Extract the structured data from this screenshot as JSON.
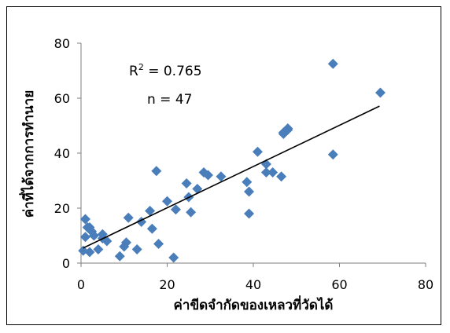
{
  "chart_data": {
    "type": "scatter",
    "xlabel": "ค่าขีดจำกัดของเหลวที่วัดได้",
    "ylabel": "ค่าที่ได้จากการทำนาย",
    "xlim": [
      0,
      80
    ],
    "ylim": [
      0,
      80
    ],
    "x_ticks": [
      "0",
      "20",
      "40",
      "60",
      "80"
    ],
    "y_ticks": [
      "0",
      "20",
      "40",
      "60",
      "80"
    ],
    "grid": false,
    "legend": "none",
    "marker": "diamond",
    "marker_color": "#4a7ebb",
    "trendline_color": "#000000",
    "annotations": {
      "r2_base": "R",
      "r2_sup": "2",
      "r2_value": " = 0.765",
      "n_text": "n = 47"
    },
    "trendline": {
      "x": [
        0.5,
        69.3
      ],
      "y": [
        5.5,
        57.1
      ]
    },
    "points": {
      "x": [
        0.5,
        1,
        1,
        1.5,
        2,
        2,
        2.5,
        3,
        4,
        5,
        5,
        6,
        9,
        10,
        10.5,
        11,
        13,
        14,
        16,
        16.5,
        17.5,
        18,
        20,
        21.5,
        22,
        24.5,
        25,
        25.5,
        27,
        28.5,
        29.5,
        32.5,
        38.5,
        39,
        39,
        41,
        43,
        43,
        44.5,
        46.5,
        47,
        47,
        48,
        48,
        58.5,
        58.5,
        69.5
      ],
      "y": [
        4.5,
        16,
        9.5,
        13,
        4,
        13,
        11.5,
        10,
        5,
        10.5,
        9,
        8,
        2.5,
        6,
        7.5,
        16.5,
        5,
        15,
        19,
        12.5,
        33.5,
        7,
        22.5,
        2,
        19.5,
        29,
        24,
        18.5,
        27,
        33,
        32,
        31.5,
        29.5,
        26,
        18,
        40.5,
        36,
        33,
        33,
        31.5,
        47,
        47.5,
        49,
        48.5,
        72.5,
        39.5,
        62
      ]
    }
  }
}
